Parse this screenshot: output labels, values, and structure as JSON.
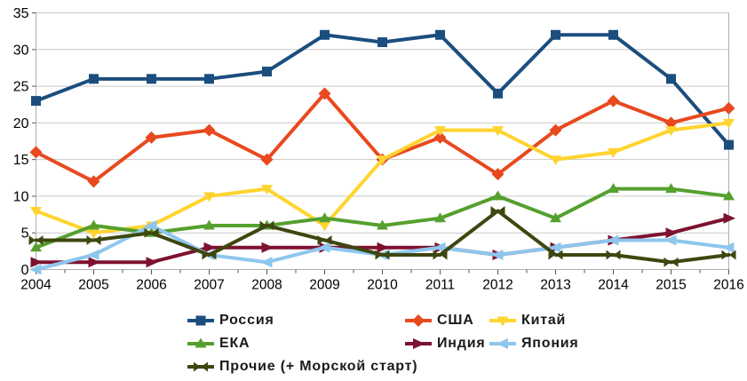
{
  "chart_data": {
    "type": "line",
    "title": "",
    "xlabel": "",
    "ylabel": "",
    "x": [
      2004,
      2005,
      2006,
      2007,
      2008,
      2009,
      2010,
      2011,
      2012,
      2013,
      2014,
      2015,
      2016
    ],
    "ylim": [
      0,
      35
    ],
    "yticks": [
      0,
      5,
      10,
      15,
      20,
      25,
      30,
      35
    ],
    "grid": "horizontal",
    "legend_position": "bottom",
    "colors": {
      "grid": "#c9c9c9",
      "axis": "#aeaeae",
      "tick": "#555555",
      "label": "#000000"
    },
    "series": [
      {
        "key": "russia",
        "name": "Россия",
        "color": "#1B4E7E",
        "marker": "square",
        "values": [
          23,
          26,
          26,
          26,
          27,
          32,
          31,
          32,
          24,
          32,
          32,
          26,
          17
        ]
      },
      {
        "key": "usa",
        "name": "США",
        "color": "#E8491E",
        "marker": "diamond",
        "values": [
          16,
          12,
          18,
          19,
          15,
          24,
          15,
          18,
          13,
          19,
          23,
          20,
          22
        ]
      },
      {
        "key": "china",
        "name": "Китай",
        "color": "#FFD42E",
        "marker": "triangle-down",
        "values": [
          8,
          5,
          6,
          10,
          11,
          6,
          15,
          19,
          19,
          15,
          16,
          19,
          20
        ]
      },
      {
        "key": "esa",
        "name": "ЕКА",
        "color": "#55A02E",
        "marker": "triangle-up",
        "values": [
          3,
          6,
          5,
          6,
          6,
          7,
          6,
          7,
          10,
          7,
          11,
          11,
          10
        ]
      },
      {
        "key": "india",
        "name": "Индия",
        "color": "#7D1230",
        "marker": "arrow-right",
        "values": [
          1,
          1,
          1,
          3,
          3,
          3,
          3,
          3,
          2,
          3,
          4,
          5,
          7
        ]
      },
      {
        "key": "japan",
        "name": "Япония",
        "color": "#8EC6EE",
        "marker": "arrow-left",
        "values": [
          0,
          2,
          6,
          2,
          1,
          3,
          2,
          3,
          2,
          3,
          4,
          4,
          3
        ]
      },
      {
        "key": "others",
        "name": "Прочие (+ Морской старт)",
        "color": "#3D470F",
        "marker": "bowtie",
        "values": [
          4,
          4,
          5,
          2,
          6,
          4,
          2,
          2,
          8,
          2,
          2,
          1,
          2
        ]
      }
    ]
  }
}
